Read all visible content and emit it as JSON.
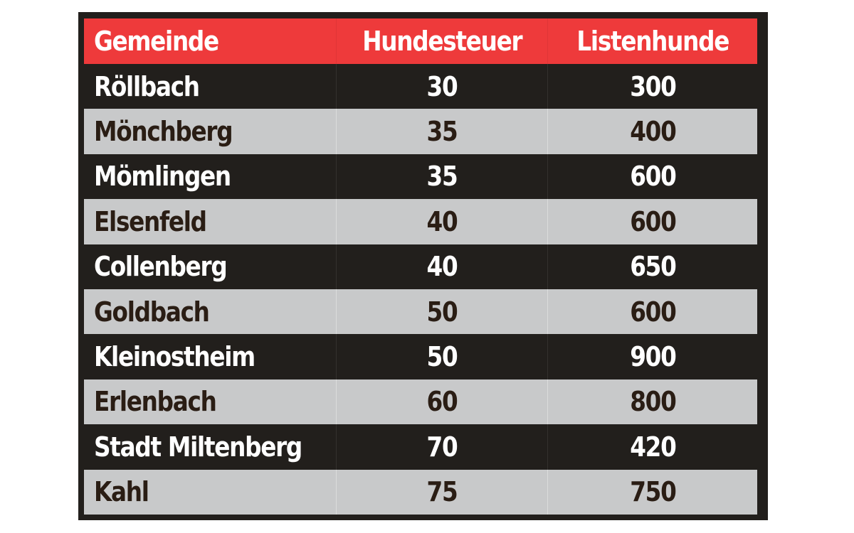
{
  "headers": [
    "Gemeinde",
    "Hundesteuer",
    "Listenhunde"
  ],
  "rows": [
    [
      "Röllbach",
      "30",
      "300"
    ],
    [
      "Mönchberg",
      "35",
      "400"
    ],
    [
      "Mömlingen",
      "35",
      "600"
    ],
    [
      "Elsenfeld",
      "40",
      "600"
    ],
    [
      "Collenberg",
      "40",
      "650"
    ],
    [
      "Goldbach",
      "50",
      "600"
    ],
    [
      "Kleinostheim",
      "50",
      "900"
    ],
    [
      "Erlenbach",
      "60",
      "800"
    ],
    [
      "Stadt Miltenberg",
      "70",
      "420"
    ],
    [
      "Kahl",
      "75",
      "750"
    ]
  ],
  "colors": {
    "header_bg": "#ee3a3b",
    "dark_row_bg": "#221f1c",
    "light_row_bg": "#c8c9ca",
    "light_row_text": "#2a1d14"
  }
}
